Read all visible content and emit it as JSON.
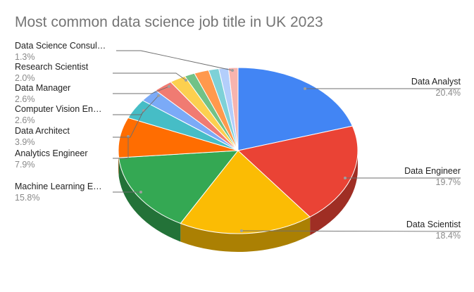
{
  "chart_data": {
    "type": "pie",
    "title": "Most common data science job title in UK 2023",
    "slices": [
      {
        "label": "Data Analyst",
        "pct": "20.4%",
        "value": 20.4,
        "color": "#4285f4",
        "side": "right"
      },
      {
        "label": "Data Engineer",
        "pct": "19.7%",
        "value": 19.7,
        "color": "#ea4335",
        "side": "right"
      },
      {
        "label": "Data Scientist",
        "pct": "18.4%",
        "value": 18.4,
        "color": "#fbbc04",
        "side": "right"
      },
      {
        "label": "Machine Learning E…",
        "pct": "15.8%",
        "value": 15.8,
        "color": "#34a853",
        "side": "left"
      },
      {
        "label": "Analytics Engineer",
        "pct": "7.9%",
        "value": 7.9,
        "color": "#ff6d01",
        "side": "left"
      },
      {
        "label": "Data Architect",
        "pct": "3.9%",
        "value": 3.9,
        "color": "#46bdc6",
        "side": "left"
      },
      {
        "label": "Computer Vision En…",
        "pct": "2.6%",
        "value": 2.6,
        "color": "#7baaf7",
        "side": "left"
      },
      {
        "label": "Data Manager",
        "pct": "2.6%",
        "value": 2.6,
        "color": "#f07b72",
        "side": "left"
      },
      {
        "label": "",
        "pct": "",
        "value": 2.2,
        "color": "#fcd04f",
        "side": "none"
      },
      {
        "label": "",
        "pct": "",
        "value": 1.4,
        "color": "#71c287",
        "side": "none"
      },
      {
        "label": "Research Scientist",
        "pct": "2.0%",
        "value": 2.0,
        "color": "#ff994d",
        "side": "left"
      },
      {
        "label": "",
        "pct": "",
        "value": 1.4,
        "color": "#7ed1d7",
        "side": "none"
      },
      {
        "label": "",
        "pct": "",
        "value": 1.3,
        "color": "#b3cefb",
        "side": "none"
      },
      {
        "label": "Data Science Consul…",
        "pct": "1.3%",
        "value": 1.3,
        "color": "#f7b4ae",
        "side": "left"
      }
    ],
    "legend": "none",
    "style": "3d"
  }
}
